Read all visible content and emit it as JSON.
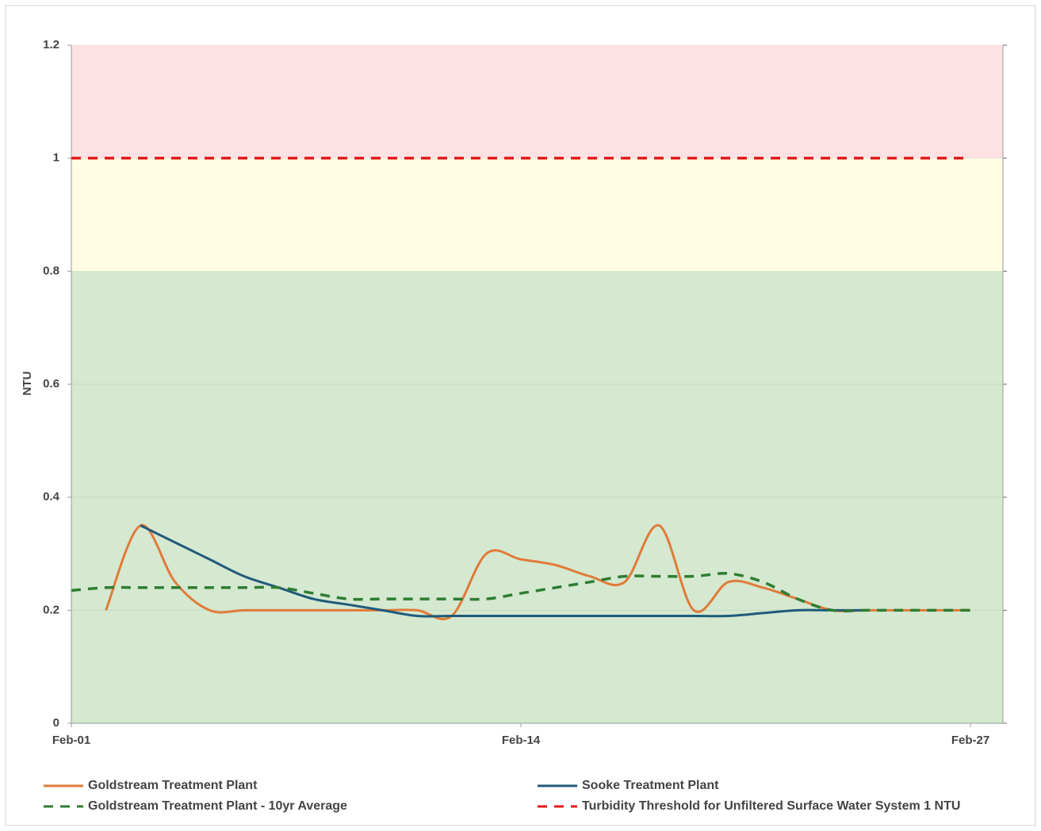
{
  "chart_data": {
    "type": "line",
    "y_label": "NTU",
    "categories": [
      "Feb-01",
      null,
      null,
      null,
      null,
      null,
      null,
      null,
      null,
      null,
      null,
      null,
      null,
      "Feb-14",
      null,
      null,
      null,
      null,
      null,
      null,
      null,
      null,
      null,
      null,
      null,
      null,
      "Feb-27"
    ],
    "ylim": [
      0,
      1.2
    ],
    "yticks": [
      0,
      0.2,
      0.4,
      0.6,
      0.8,
      1,
      1.2
    ],
    "bands": [
      {
        "from": 0,
        "to": 0.8,
        "color": "#d5e8d0"
      },
      {
        "from": 0.8,
        "to": 1,
        "color": "#fefde4"
      },
      {
        "from": 1,
        "to": 1.2,
        "color": "#fee2e3"
      }
    ],
    "series": [
      {
        "name": "Goldstream Treatment Plant",
        "color": "#e07b39",
        "dash": false,
        "values": [
          null,
          0.2,
          0.35,
          0.25,
          0.2,
          0.2,
          0.2,
          0.2,
          0.2,
          0.2,
          0.2,
          0.19,
          0.3,
          0.29,
          0.28,
          0.26,
          0.25,
          0.35,
          0.2,
          0.25,
          0.24,
          0.22,
          0.2,
          0.2,
          0.2,
          0.2,
          0.2
        ]
      },
      {
        "name": "Sooke Treatment Plant",
        "color": "#1f5a7a",
        "dash": false,
        "values": [
          null,
          null,
          0.35,
          0.32,
          0.29,
          0.26,
          0.24,
          0.22,
          0.21,
          0.2,
          0.19,
          0.19,
          0.19,
          0.19,
          0.19,
          0.19,
          0.19,
          0.19,
          0.19,
          0.19,
          0.195,
          0.2,
          0.2,
          0.2,
          null,
          null,
          null
        ]
      },
      {
        "name": "Goldstream Treatment Plant - 10yr Average",
        "color": "#2e7d32",
        "dash": true,
        "values": [
          0.235,
          0.24,
          0.24,
          0.24,
          0.24,
          0.24,
          0.24,
          0.23,
          0.22,
          0.22,
          0.22,
          0.22,
          0.22,
          0.23,
          0.24,
          0.25,
          0.26,
          0.26,
          0.26,
          0.265,
          0.25,
          0.22,
          0.2,
          0.2,
          0.2,
          0.2,
          0.2
        ]
      },
      {
        "name": "Turbidity Threshold for Unfiltered Surface Water System 1 NTU",
        "color": "#e31a1c",
        "dash": true,
        "values": [
          1,
          1,
          1,
          1,
          1,
          1,
          1,
          1,
          1,
          1,
          1,
          1,
          1,
          1,
          1,
          1,
          1,
          1,
          1,
          1,
          1,
          1,
          1,
          1,
          1,
          1,
          1
        ]
      }
    ]
  }
}
